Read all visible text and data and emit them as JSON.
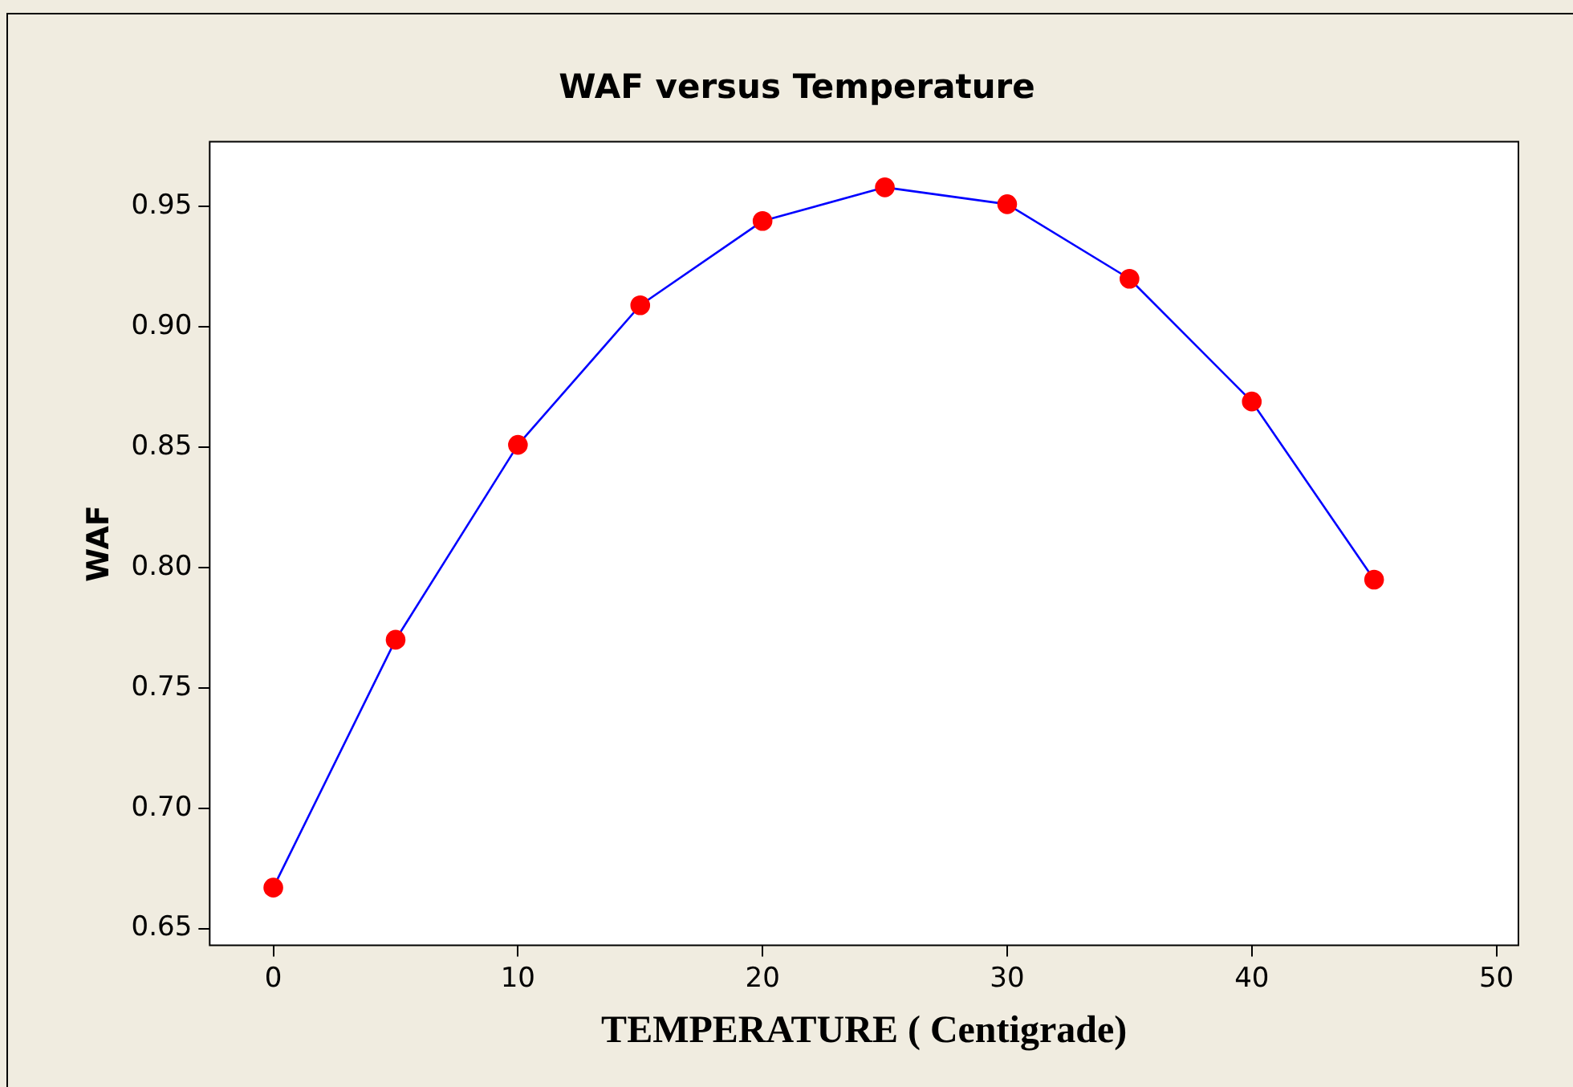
{
  "chart_data": {
    "type": "line",
    "title": "WAF versus Temperature",
    "xlabel": "TEMPERATURE ( Centigrade)",
    "ylabel": "WAF",
    "x": [
      0,
      5,
      10,
      15,
      20,
      25,
      30,
      35,
      40,
      45
    ],
    "series": [
      {
        "color": "#0000ff",
        "colors": [
          "#ff0000",
          "#ff0000",
          "#ff0000",
          "#ff0000",
          "#ff0000",
          "#ff0000",
          "#ff0000",
          "#ff0000",
          "#ff0000",
          "#ff0000"
        ],
        "values": [
          0.667,
          0.77,
          0.851,
          0.909,
          0.944,
          0.958,
          0.951,
          0.92,
          0.869,
          0.795
        ]
      }
    ],
    "xlim": [
      -2.6,
      50.9
    ],
    "xticks": [
      0,
      10,
      20,
      30,
      40,
      50
    ],
    "ylim": [
      0.643,
      0.977
    ],
    "yticks": [
      0.65,
      {
        "value": 0.7,
        "label": "0.70"
      },
      0.75,
      {
        "value": 0.8,
        "label": "0.80"
      },
      0.85,
      {
        "value": 0.9,
        "label": "0.90"
      },
      0.95
    ],
    "grid": false,
    "legend": false,
    "marker": "circle",
    "line_style": "solid"
  }
}
